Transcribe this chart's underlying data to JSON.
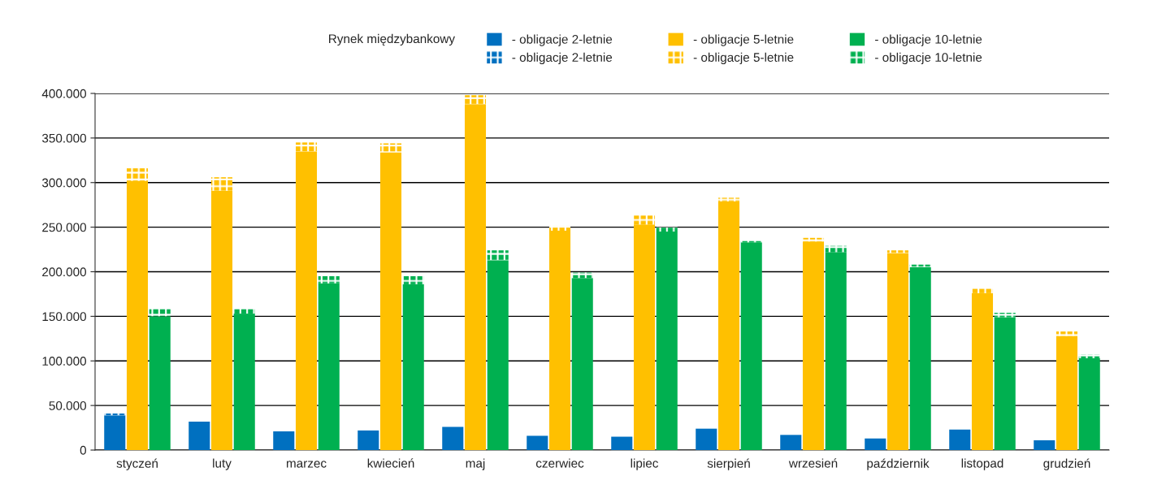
{
  "chart_data": [
    {
      "type": "bar",
      "stacked": true,
      "legend": "top",
      "grid": "y",
      "annotations": [
        "Rynek międzybankowy"
      ],
      "categories": [
        "styczeń",
        "luty",
        "marzec",
        "kwiecień",
        "maj",
        "czerwiec",
        "lipiec",
        "sierpień",
        "wrzesień",
        "październik",
        "listopad",
        "grudzień"
      ],
      "series": [
        {
          "name": "- obligacje 2-letnie",
          "color": "#0070c0",
          "values": [
            39000,
            32000,
            21000,
            22000,
            26000,
            16000,
            15000,
            24000,
            17000,
            13000,
            23000,
            11000
          ]
        },
        {
          "name": "- obligacje 2-letnie",
          "color": "#0070c0",
          "values": [
            2000,
            0,
            0,
            0,
            0,
            0,
            0,
            0,
            0,
            0,
            0,
            0
          ]
        }
      ],
      "ylim": [
        0,
        400000
      ],
      "yticks": [
        {
          "value": 0,
          "label": "0"
        },
        {
          "value": 50000,
          "label": "50.000"
        },
        {
          "value": 100000,
          "label": "100.000"
        },
        {
          "value": 150000,
          "label": "150.000"
        },
        {
          "value": 200000,
          "label": "200.000"
        },
        {
          "value": 250000,
          "label": "250.000"
        },
        {
          "value": 300000,
          "label": "300.000"
        },
        {
          "value": 350000,
          "label": "350.000"
        },
        {
          "value": 400000,
          "label": "400.000"
        }
      ]
    },
    {
      "type": "bar",
      "stacked": true,
      "legend": "top",
      "tick_labels": false,
      "categories": [
        null,
        null,
        null,
        null,
        null,
        null,
        null,
        null,
        null,
        null,
        null,
        null
      ],
      "series": [
        {
          "name": "- obligacje 5-letnie",
          "color": "#ffc000",
          "values": [
            302000,
            291000,
            335000,
            334000,
            388000,
            246000,
            253000,
            279000,
            234000,
            221000,
            176000,
            128000
          ]
        },
        {
          "name": "- obligacje 5-letnie",
          "color": "#ffc000",
          "values": [
            14000,
            15000,
            10000,
            10000,
            10000,
            5000,
            10000,
            4000,
            4000,
            3000,
            5000,
            5000
          ]
        }
      ],
      "ylim": [
        0,
        400000
      ]
    },
    {
      "type": "bar",
      "stacked": true,
      "legend": "top",
      "tick_labels": false,
      "categories": [
        null,
        null,
        null,
        null,
        null,
        null,
        null,
        null,
        null,
        null,
        null,
        null
      ],
      "series": [
        {
          "name": "- obligacje 10-letnie",
          "color": "#00b050",
          "values": [
            150000,
            153000,
            187000,
            186000,
            213000,
            193000,
            245000,
            233000,
            222000,
            205000,
            149000,
            103000
          ]
        },
        {
          "name": "- obligacje 10-letnie",
          "color": "#00b050",
          "values": [
            8000,
            5000,
            8000,
            9000,
            11000,
            6000,
            5000,
            3000,
            7000,
            3000,
            5000,
            4000
          ]
        }
      ],
      "ylim": [
        0,
        400000
      ]
    }
  ]
}
